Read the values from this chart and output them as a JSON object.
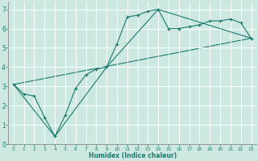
{
  "xlabel": "Humidex (Indice chaleur)",
  "ylabel": "",
  "bg_color": "#cce8e0",
  "line_color": "#1a7a6e",
  "grid_color": "#ffffff",
  "xlim": [
    -0.5,
    23.5
  ],
  "ylim": [
    0,
    7.4
  ],
  "xticks": [
    0,
    1,
    2,
    3,
    4,
    5,
    6,
    7,
    8,
    9,
    10,
    11,
    12,
    13,
    14,
    15,
    16,
    17,
    18,
    19,
    20,
    21,
    22,
    23
  ],
  "yticks": [
    0,
    1,
    2,
    3,
    4,
    5,
    6,
    7
  ],
  "jagged_x": [
    0,
    1,
    2,
    3,
    4,
    5,
    6,
    7,
    8,
    9,
    10,
    11,
    12,
    13,
    14,
    15,
    16,
    17,
    18,
    19,
    20,
    21,
    22,
    23
  ],
  "jagged_y": [
    3.1,
    2.6,
    2.5,
    1.4,
    0.4,
    1.5,
    2.9,
    3.6,
    3.9,
    4.0,
    5.2,
    6.6,
    6.7,
    6.9,
    7.0,
    6.0,
    6.0,
    6.1,
    6.2,
    6.4,
    6.4,
    6.5,
    6.3,
    5.5
  ],
  "line2_x": [
    0,
    4,
    9,
    14,
    23
  ],
  "line2_y": [
    3.1,
    0.4,
    4.0,
    7.0,
    5.5
  ],
  "line3_x": [
    0,
    23
  ],
  "line3_y": [
    3.1,
    5.5
  ]
}
